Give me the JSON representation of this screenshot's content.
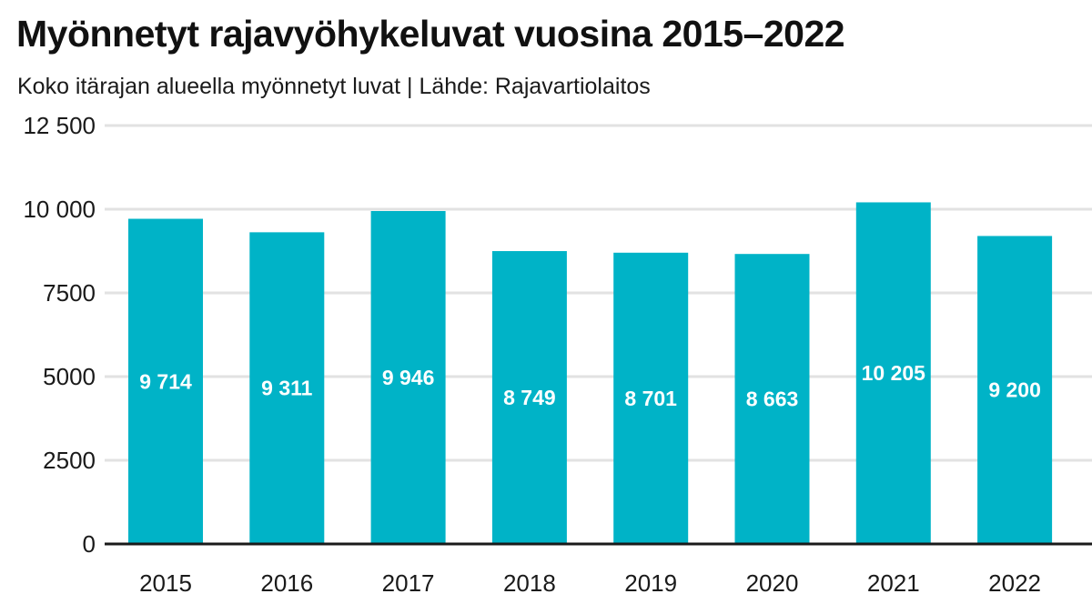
{
  "header": {
    "title": "Myönnetyt rajavyöhykeluvat vuosina 2015–2022",
    "subtitle": "Koko itärajan alueella myönnetyt luvat | Lähde: Rajavartiolaitos"
  },
  "chart_data": {
    "type": "bar",
    "title": "Myönnetyt rajavyöhykeluvat vuosina 2015–2022",
    "subtitle": "Koko itärajan alueella myönnetyt luvat | Lähde: Rajavartiolaitos",
    "xlabel": "",
    "ylabel": "",
    "categories": [
      "2015",
      "2016",
      "2017",
      "2018",
      "2019",
      "2020",
      "2021",
      "2022"
    ],
    "values": [
      9714,
      9311,
      9946,
      8749,
      8701,
      8663,
      10205,
      9200
    ],
    "value_labels": [
      "9 714",
      "9 311",
      "9 946",
      "8 749",
      "8 701",
      "8 663",
      "10 205",
      "9 200"
    ],
    "ylim": [
      0,
      12500
    ],
    "y_ticks": [
      0,
      2500,
      5000,
      7500,
      10000,
      12500
    ],
    "y_tick_labels": [
      "0",
      "2500",
      "5000",
      "7500",
      "10 000",
      "12 500"
    ],
    "grid": true,
    "legend": "none",
    "colors": {
      "bar": "#00b3c7",
      "grid": "#e2e2e2",
      "axis": "#1a1a1a",
      "value_label": "#ffffff"
    }
  }
}
